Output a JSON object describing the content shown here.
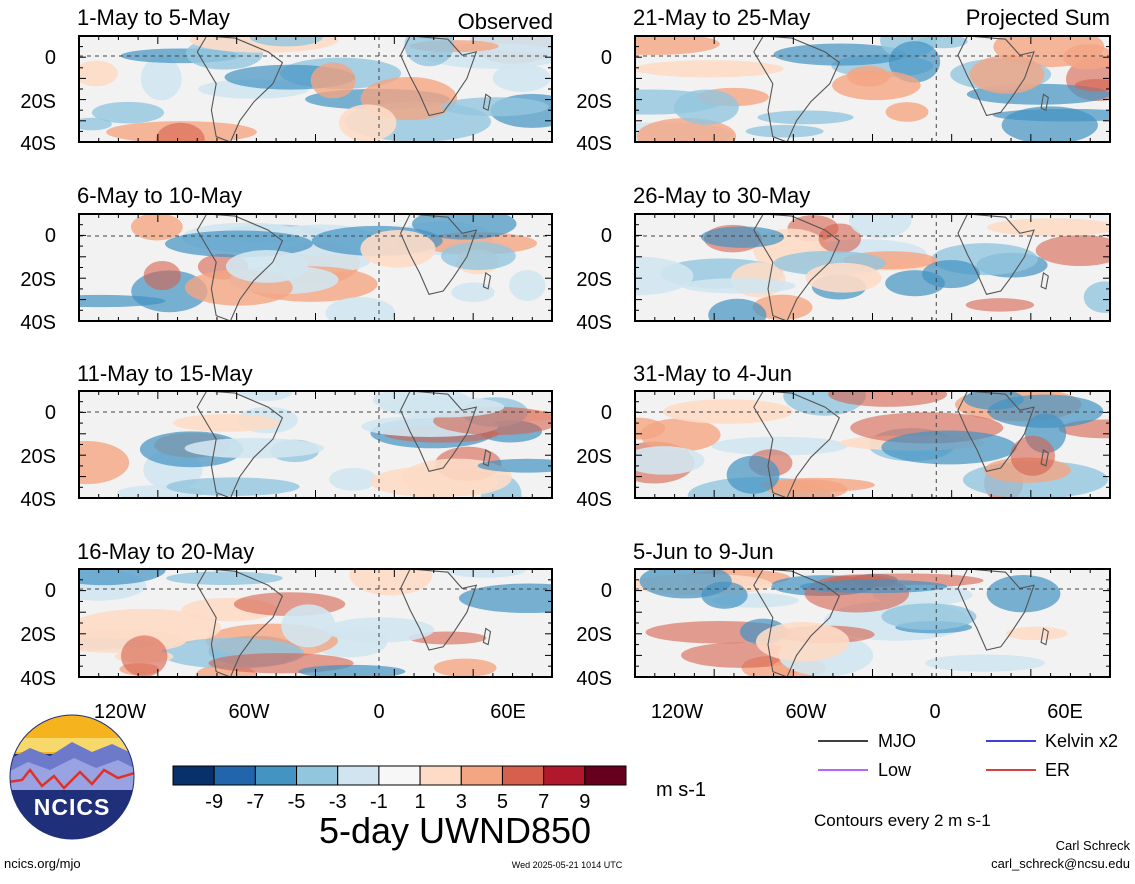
{
  "header": {
    "left_label": "Observed",
    "right_label": "Projected Sum"
  },
  "panels_left": [
    {
      "title": "1-May to 5-May"
    },
    {
      "title": "6-May to 10-May"
    },
    {
      "title": "11-May to 15-May"
    },
    {
      "title": "16-May to 20-May"
    }
  ],
  "panels_right": [
    {
      "title": "21-May to 25-May"
    },
    {
      "title": "26-May to 30-May"
    },
    {
      "title": "31-May to 4-Jun"
    },
    {
      "title": "5-Jun to 9-Jun"
    }
  ],
  "y_ticks": [
    "0",
    "20S",
    "40S"
  ],
  "x_ticks": [
    "120W",
    "60W",
    "0",
    "60E"
  ],
  "colorbar": {
    "colors": [
      "#08306b",
      "#2166ac",
      "#4393c3",
      "#92c5de",
      "#d1e5f0",
      "#f7f7f7",
      "#fddbc7",
      "#f4a582",
      "#d6604d",
      "#b2182b",
      "#67001f"
    ],
    "labels": [
      "-9",
      "-7",
      "-5",
      "-3",
      "-1",
      "1",
      "3",
      "5",
      "7",
      "9"
    ],
    "units": "m s-1"
  },
  "main_title": "5-day UWND850",
  "legend": {
    "items": [
      {
        "label": "MJO",
        "color": "#000000"
      },
      {
        "label": "Kelvin x2",
        "color": "#0000cc"
      },
      {
        "label": "Low",
        "color": "#9933ff"
      },
      {
        "label": "ER",
        "color": "#cc0000"
      }
    ],
    "contour_note": "Contours every 2 m s-1"
  },
  "footer": {
    "website": "ncics.org/mjo",
    "timestamp": "Wed 2025-05-21 1014 UTC",
    "author": "Carl Schreck",
    "email": "carl_schreck@ncsu.edu"
  },
  "logo": {
    "text": "NCICS"
  }
}
